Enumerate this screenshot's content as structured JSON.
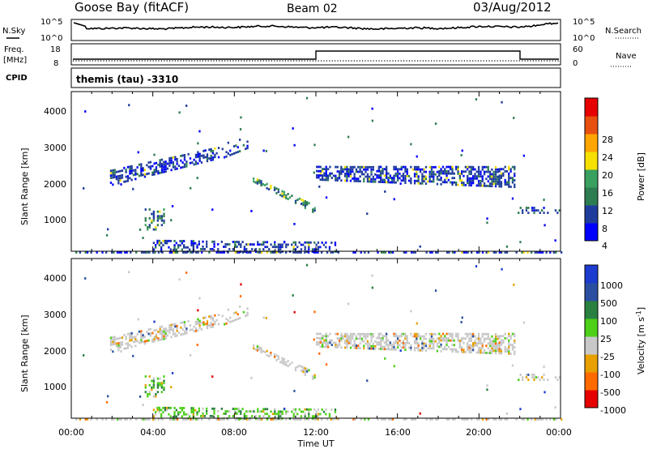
{
  "header": {
    "station": "Goose Bay (fitACF)",
    "beam": "Beam 02",
    "date": "03/Aug/2012"
  },
  "noise_panel": {
    "left_label": "N.Sky",
    "left_ticks": [
      "10^5",
      "10^0"
    ],
    "right_label": "N.Search",
    "right_ticks": [
      "10^5",
      "10^0"
    ]
  },
  "freq_panel": {
    "left_label_1": "Freq.",
    "left_label_2": "[MHz]",
    "left_ticks": [
      "18",
      "8"
    ],
    "right_label": "Nave",
    "right_ticks": [
      "60",
      "0"
    ]
  },
  "cpid_panel": {
    "label": "CPID",
    "program": "themis (tau) -3310"
  },
  "colors": {
    "power": [
      "#0000ff",
      "#1f3c9c",
      "#2e7d52",
      "#3aa060",
      "#f5e000",
      "#ffa500",
      "#e85010",
      "#e60000"
    ],
    "velocity": [
      "#1c3cd0",
      "#2a4fa0",
      "#2a8040",
      "#4cd018",
      "#c8c8c8",
      "#e8a000",
      "#ff6a00",
      "#e60000"
    ]
  },
  "chart_data": [
    {
      "type": "heatmap",
      "title": "Power",
      "xlabel": "",
      "ylabel": "Slant Range [km]",
      "xlim": [
        "00:00",
        "24:00"
      ],
      "ylim": [
        180,
        4500
      ],
      "y_ticks": [
        "1000",
        "2000",
        "3000",
        "4000"
      ],
      "x_ticks": [
        "00:00",
        "04:00",
        "08:00",
        "12:00",
        "16:00",
        "20:00",
        "00:00"
      ],
      "colorbar_label": "Power [dB]",
      "colorbar_ticks": [
        "4",
        "8",
        "12",
        "16",
        "20",
        "24",
        "28"
      ],
      "colorbar_range": [
        0,
        30
      ]
    },
    {
      "type": "heatmap",
      "title": "Velocity",
      "xlabel": "Time UT",
      "ylabel": "Slant Range [km]",
      "xlim": [
        "00:00",
        "24:00"
      ],
      "ylim": [
        180,
        4500
      ],
      "y_ticks": [
        "1000",
        "2000",
        "3000",
        "4000"
      ],
      "x_ticks": [
        "00:00",
        "04:00",
        "08:00",
        "12:00",
        "16:00",
        "20:00",
        "00:00"
      ],
      "colorbar_label": "Velocity [m s^-1]",
      "colorbar_ticks": [
        "1000",
        "500",
        "100",
        "25",
        "-25",
        "-100",
        "-500",
        "-1000"
      ]
    }
  ],
  "scatter_regions": [
    {
      "name": "morning-band",
      "t0": 1.9,
      "t1": 7.0,
      "r0_start": 2000,
      "r0_end": 2700,
      "r1_start": 2450,
      "r1_end": 3050,
      "density": 0.55,
      "power": "low",
      "vel": "grey"
    },
    {
      "name": "night-band",
      "t0": 7.0,
      "t1": 8.6,
      "r0_start": 2650,
      "r0_end": 3000,
      "r1_start": 3100,
      "r1_end": 3350,
      "density": 0.2,
      "power": "low",
      "vel": "grey"
    },
    {
      "name": "descending-band",
      "t0": 8.9,
      "t1": 11.9,
      "r0_start": 2100,
      "r0_end": 1250,
      "r1_start": 2250,
      "r1_end": 1500,
      "density": 0.55,
      "power": "mid",
      "vel": "grey"
    },
    {
      "name": "main-band",
      "t0": 12.0,
      "t1": 21.7,
      "r0_start": 2150,
      "r0_end": 1950,
      "r1_start": 2550,
      "r1_end": 2550,
      "density": 0.6,
      "power": "low",
      "vel": "grey"
    },
    {
      "name": "dawn-patch",
      "t0": 3.6,
      "t1": 4.5,
      "r0_start": 800,
      "r0_end": 800,
      "r1_start": 1400,
      "r1_end": 1400,
      "density": 0.45,
      "power": "mid",
      "vel": "green"
    },
    {
      "name": "late-band",
      "t0": 21.9,
      "t1": 24.0,
      "r0_start": 1250,
      "r0_end": 1250,
      "r1_start": 1450,
      "r1_end": 1450,
      "density": 0.35,
      "power": "low",
      "vel": "grey"
    },
    {
      "name": "near-range",
      "t0": 4.0,
      "t1": 13.0,
      "r0_start": 200,
      "r0_end": 200,
      "r1_start": 550,
      "r1_end": 500,
      "density": 0.35,
      "power": "low",
      "vel": "green"
    },
    {
      "name": "bottom-row",
      "t0": 0.2,
      "t1": 24.0,
      "r0_start": 180,
      "r0_end": 180,
      "r1_start": 240,
      "r1_end": 240,
      "density": 0.5,
      "power": "low",
      "vel": "grey"
    }
  ]
}
